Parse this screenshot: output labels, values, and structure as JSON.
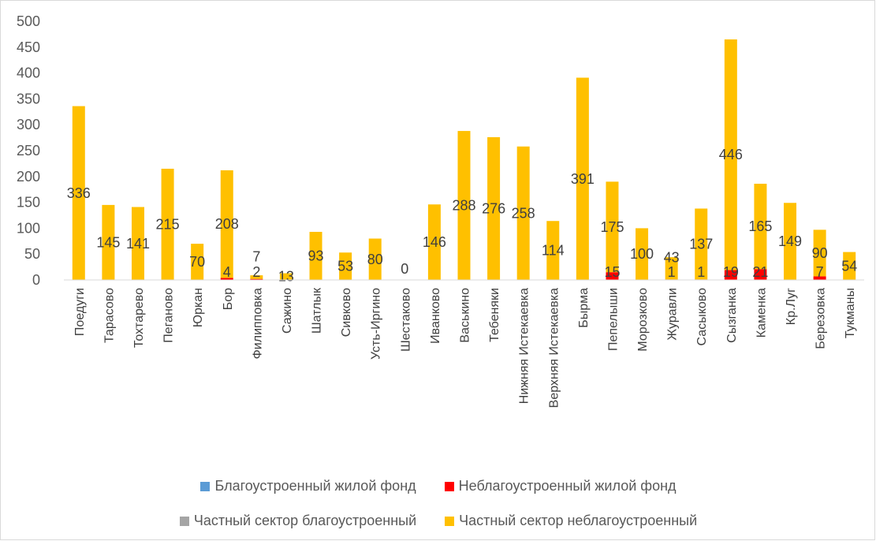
{
  "chart_data": {
    "type": "bar",
    "stacked": true,
    "categories": [
      "Поедуги",
      "Тарасово",
      "Тохтарево",
      "Пеганово",
      "Юркан",
      "Бор",
      "Филипповка",
      "Сажино",
      "Шатлык",
      "Сивково",
      "Усть-Иргино",
      "Шестаково",
      "Иванково",
      "Васькино",
      "Тебеняки",
      "Нижняя Истекаевка",
      "Верхняя Истекаевка",
      "Бырма",
      "Пепелыши",
      "Морозково",
      "Журавли",
      "Сасыково",
      "Сызганка",
      "Каменка",
      "Кр.Луг",
      "Березовка",
      "Тукманы"
    ],
    "series": [
      {
        "name": "Благоустроенный жилой фонд",
        "color": "#5b9bd5",
        "values": [
          0,
          0,
          0,
          0,
          0,
          0,
          0,
          0,
          0,
          0,
          0,
          0,
          0,
          0,
          0,
          0,
          0,
          0,
          0,
          0,
          0,
          0,
          0,
          0,
          0,
          0,
          0
        ]
      },
      {
        "name": "Неблагоустроенный  жилой фонд",
        "color": "#ff0000",
        "values": [
          null,
          null,
          null,
          null,
          null,
          4,
          2,
          null,
          null,
          null,
          null,
          null,
          null,
          null,
          null,
          null,
          null,
          null,
          15,
          null,
          1,
          1,
          19,
          21,
          null,
          7,
          null
        ]
      },
      {
        "name": "Частный сектор благоустроенный",
        "color": "#a5a5a5",
        "values": [
          0,
          0,
          0,
          0,
          0,
          0,
          0,
          0,
          0,
          0,
          0,
          0,
          0,
          0,
          0,
          0,
          0,
          0,
          0,
          0,
          0,
          0,
          0,
          0,
          0,
          0,
          0
        ]
      },
      {
        "name": "Частный сектор неблагоустроенный",
        "color": "#ffc000",
        "values": [
          336,
          145,
          141,
          215,
          70,
          208,
          7,
          13,
          93,
          53,
          80,
          0,
          146,
          288,
          276,
          258,
          114,
          391,
          175,
          100,
          43,
          137,
          446,
          165,
          149,
          90,
          54
        ]
      }
    ],
    "ylim": [
      0,
      500
    ],
    "yticks": [
      0,
      50,
      100,
      150,
      200,
      250,
      300,
      350,
      400,
      450,
      500
    ],
    "grid": false,
    "legend_position": "bottom"
  },
  "legend": {
    "row1": [
      "Благоустроенный жилой фонд",
      "Неблагоустроенный  жилой фонд"
    ],
    "row2": [
      "Частный сектор благоустроенный",
      "Частный сектор неблагоустроенный"
    ]
  }
}
